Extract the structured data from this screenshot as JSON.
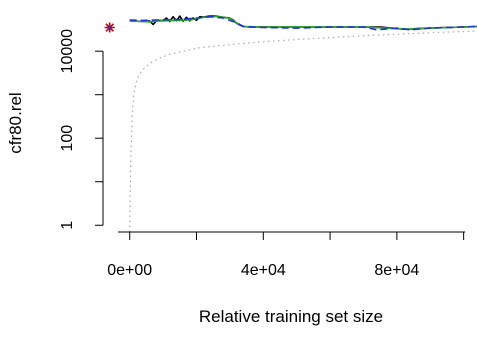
{
  "chart_data": {
    "type": "line",
    "title": "",
    "xlabel": "Relative training set size",
    "ylabel": "cfr80.rel",
    "xlim": [
      -8000,
      104000
    ],
    "ylim": [
      0.7,
      150000
    ],
    "y_scale": "log",
    "x_ticks": [
      0,
      20000,
      40000,
      60000,
      80000,
      100000
    ],
    "x_tick_labels": [
      "0e+00",
      "",
      "4e+04",
      "",
      "8e+04",
      ""
    ],
    "y_ticks": [
      1,
      10,
      100,
      1000,
      10000
    ],
    "y_tick_labels": [
      "1",
      "",
      "100",
      "",
      "10000"
    ],
    "grid": false,
    "legend": "none",
    "series": [
      {
        "style": "solid",
        "color": "#000000",
        "x": [
          0,
          4000,
          6000,
          7000,
          8000,
          9000,
          10000,
          11000,
          12000,
          13000,
          14000,
          15000,
          16000,
          17000,
          18000,
          19000,
          20000,
          21000,
          22000,
          24000,
          26000,
          28000,
          30000,
          31000,
          32000,
          33000,
          34000,
          36000,
          40000,
          45000,
          50000,
          55000,
          60000,
          65000,
          70000,
          75000,
          80000,
          82000,
          84000,
          86000,
          90000,
          95000,
          100000,
          104000
        ],
        "y": [
          50000,
          48000,
          49000,
          41000,
          50000,
          51000,
          50000,
          58000,
          48000,
          62000,
          50000,
          64000,
          49000,
          60000,
          50000,
          58000,
          51000,
          62000,
          61000,
          64000,
          64000,
          60000,
          58000,
          52000,
          44000,
          40000,
          37000,
          36000,
          36000,
          36000,
          36000,
          36000,
          36000,
          36000,
          36000,
          36000,
          33000,
          32000,
          32000,
          33000,
          34000,
          35000,
          36000,
          37000
        ]
      },
      {
        "style": "solid",
        "color": "#22aa22",
        "x": [
          0,
          4000,
          6000,
          8000,
          10000,
          14000,
          18000,
          22000,
          26000,
          30000,
          32000,
          34000,
          40000,
          50000,
          60000,
          70000,
          80000,
          84000,
          90000,
          100000,
          104000
        ],
        "y": [
          49000,
          48000,
          47000,
          49000,
          50000,
          51000,
          52000,
          60000,
          63000,
          57000,
          45000,
          37000,
          36000,
          36000,
          36000,
          36000,
          33000,
          32000,
          34000,
          36000,
          37000
        ]
      },
      {
        "style": "dashed",
        "color": "#1f2fe0",
        "x": [
          0,
          4000,
          8000,
          12000,
          16000,
          20000,
          24000,
          28000,
          32000,
          34000,
          40000,
          50000,
          60000,
          70000,
          74000,
          80000,
          84000,
          90000,
          95000,
          100000,
          104000
        ],
        "y": [
          52000,
          51000,
          52000,
          53000,
          54000,
          58000,
          62000,
          58000,
          45000,
          37000,
          35000,
          34000,
          36000,
          36000,
          31000,
          34000,
          31000,
          34000,
          35000,
          36000,
          37000
        ]
      },
      {
        "style": "dotted",
        "color": "#aaaaaa",
        "x": [
          0,
          300,
          700,
          1200,
          2000,
          3000,
          4500,
          6500,
          9000,
          12000,
          16000,
          21000,
          27000,
          34000,
          42000,
          52000,
          62000,
          72000,
          82000,
          92000,
          104000
        ],
        "y": [
          0.7,
          30,
          300,
          1000,
          2000,
          3000,
          4200,
          5500,
          7000,
          8500,
          10000,
          12000,
          13500,
          15000,
          17000,
          19000,
          21000,
          23000,
          25000,
          27000,
          29000
        ]
      }
    ],
    "points": [
      {
        "x": -6000,
        "y": 35000,
        "marker": "star",
        "color": "#cc0000"
      }
    ]
  }
}
